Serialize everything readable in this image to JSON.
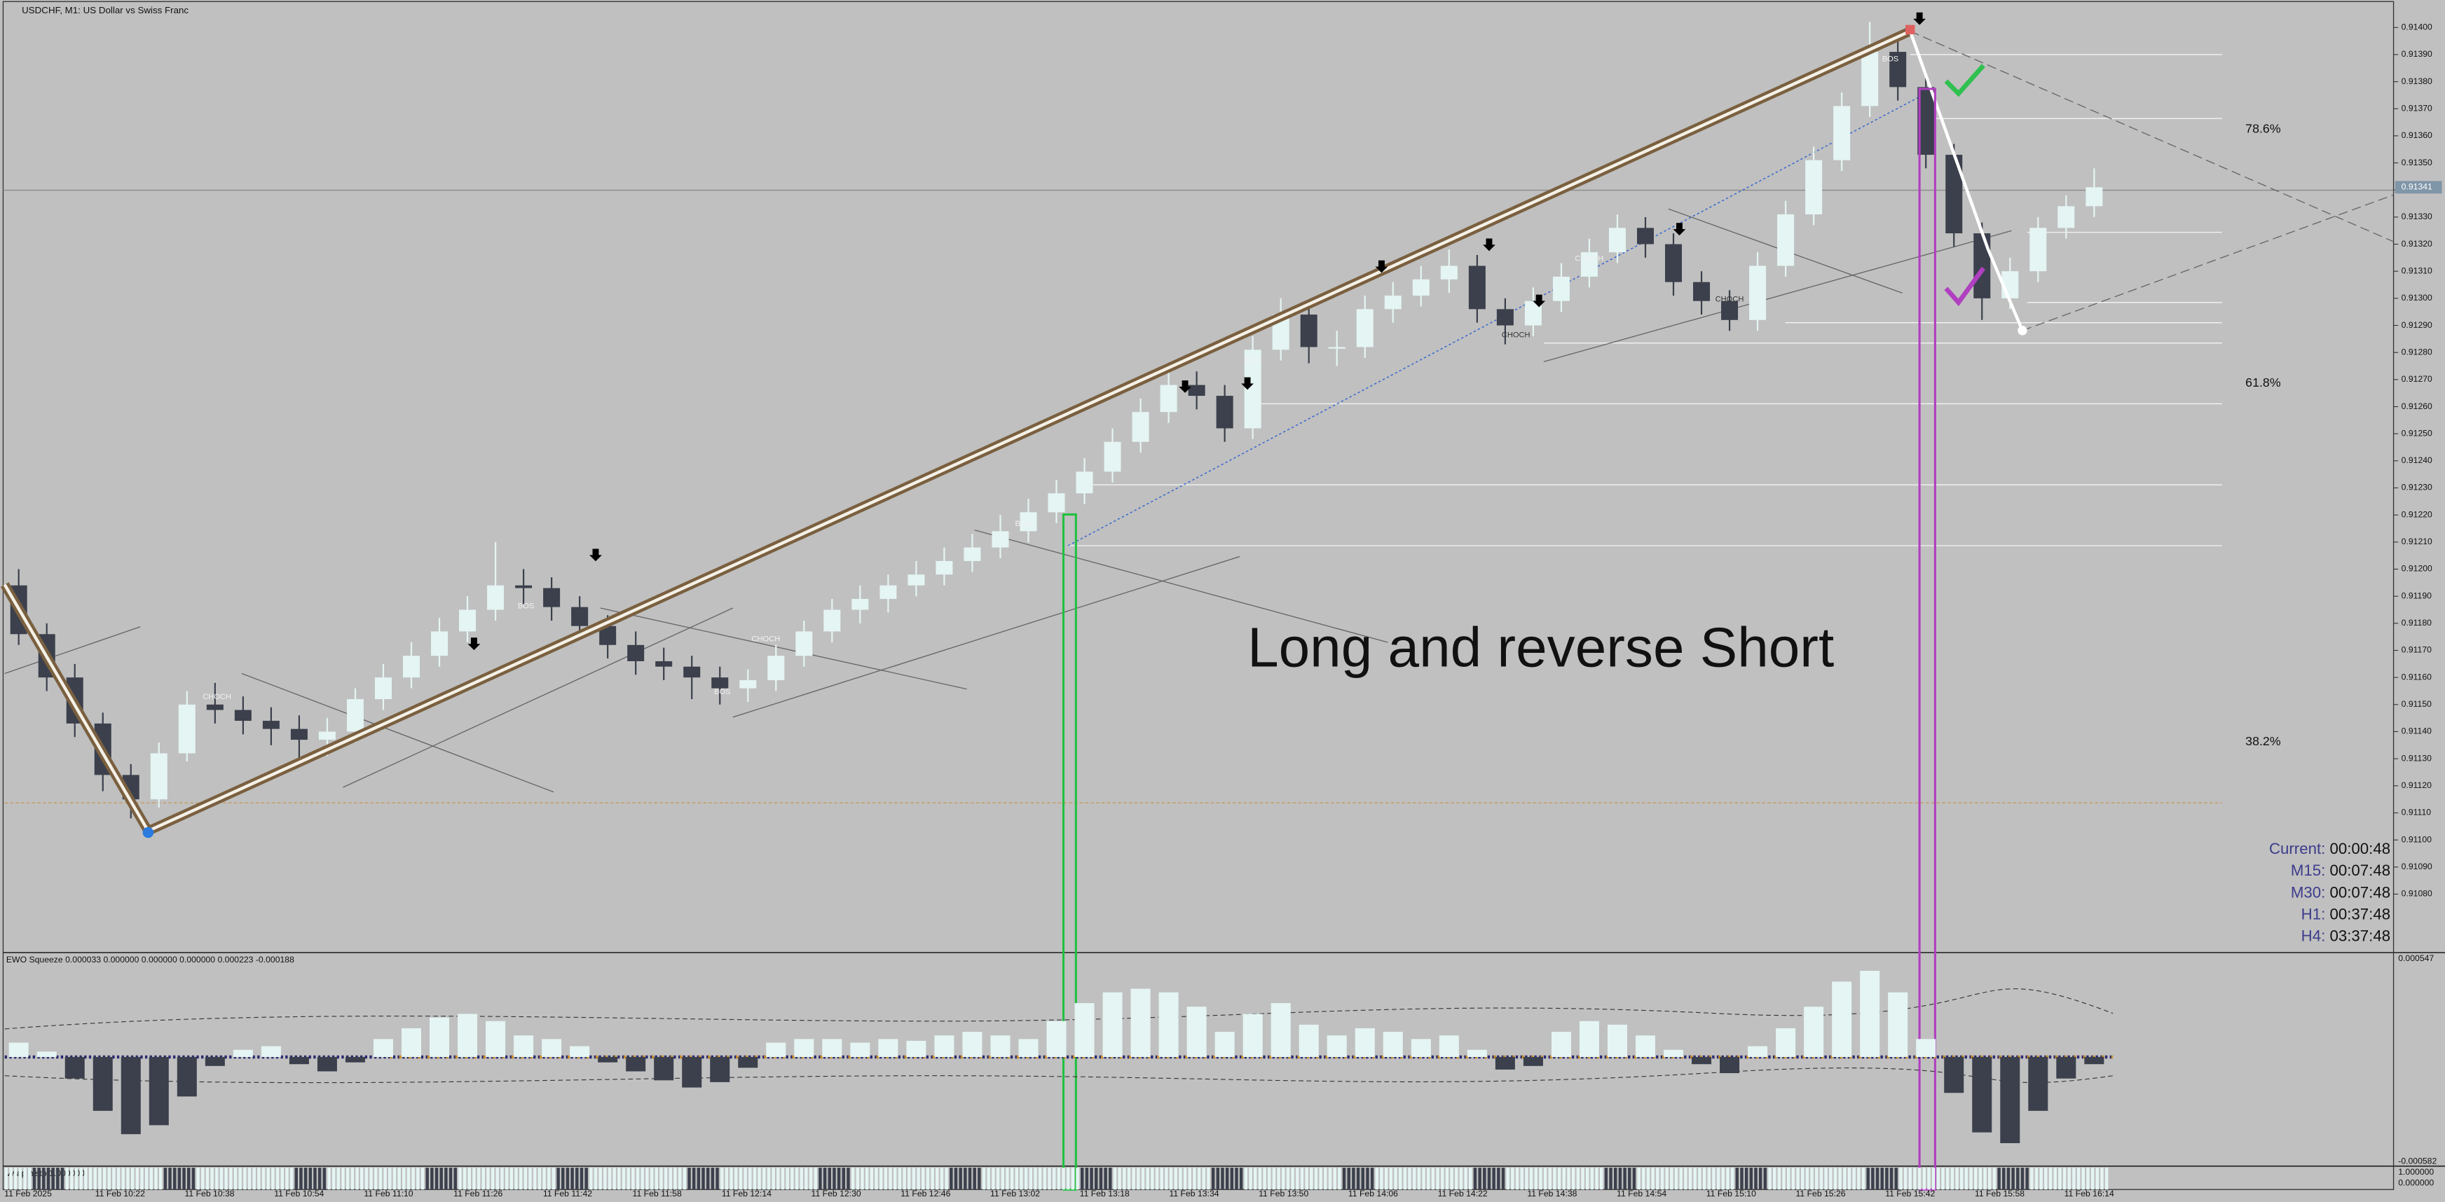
{
  "chart_data": [
    {
      "type": "candlestick",
      "title": "USDCHF, M1:  US Dollar vs Swiss Franc",
      "annotations": [
        "Long and reverse Short"
      ],
      "smc_labels": [
        "BOS",
        "BOS",
        "CHOCH",
        "CHOCH",
        "BOS",
        "BOS",
        "CHOCH",
        "CHOCH",
        "CHOCH",
        "BOS"
      ],
      "fib_labels": [
        "78.6%",
        "61.8%",
        "38.2%"
      ],
      "timers": [
        {
          "label": "Current:",
          "value": "00:00:48"
        },
        {
          "label": "M15:",
          "value": "00:07:48"
        },
        {
          "label": "M30:",
          "value": "00:07:48"
        },
        {
          "label": "H1:",
          "value": "00:37:48"
        },
        {
          "label": "H4:",
          "value": "03:37:48"
        }
      ],
      "xticks": [
        "11 Feb 2025",
        "11 Feb 10:22",
        "11 Feb 10:38",
        "11 Feb 10:54",
        "11 Feb 11:10",
        "11 Feb 11:26",
        "11 Feb 11:42",
        "11 Feb 11:58",
        "11 Feb 12:14",
        "11 Feb 12:30",
        "11 Feb 12:46",
        "11 Feb 13:02",
        "11 Feb 13:18",
        "11 Feb 13:34",
        "11 Feb 13:50",
        "11 Feb 14:06",
        "11 Feb 14:22",
        "11 Feb 14:38",
        "11 Feb 14:54",
        "11 Feb 15:10",
        "11 Feb 15:26",
        "11 Feb 15:42",
        "11 Feb 15:58",
        "11 Feb 16:14"
      ],
      "ylim": [
        0.91059,
        0.91409
      ],
      "yticks": [
        {
          "value": 0.9108,
          "label": "0.91080"
        },
        {
          "value": 0.9109,
          "label": "0.91090"
        },
        {
          "value": 0.911,
          "label": "0.91100"
        },
        {
          "value": 0.9111,
          "label": "0.91110"
        },
        {
          "value": 0.9112,
          "label": "0.91120"
        },
        {
          "value": 0.9113,
          "label": "0.91130"
        },
        {
          "value": 0.9114,
          "label": "0.91140"
        },
        {
          "value": 0.9115,
          "label": "0.91150"
        },
        {
          "value": 0.9116,
          "label": "0.91160"
        },
        {
          "value": 0.9117,
          "label": "0.91170"
        },
        {
          "value": 0.9118,
          "label": "0.91180"
        },
        {
          "value": 0.9119,
          "label": "0.91190"
        },
        {
          "value": 0.912,
          "label": "0.91200"
        },
        {
          "value": 0.9121,
          "label": "0.91210"
        },
        {
          "value": 0.9122,
          "label": "0.91220"
        },
        {
          "value": 0.9123,
          "label": "0.91230"
        },
        {
          "value": 0.9124,
          "label": "0.91240"
        },
        {
          "value": 0.9125,
          "label": "0.91250"
        },
        {
          "value": 0.9126,
          "label": "0.91260"
        },
        {
          "value": 0.9127,
          "label": "0.91270"
        },
        {
          "value": 0.9128,
          "label": "0.91280"
        },
        {
          "value": 0.9129,
          "label": "0.91290"
        },
        {
          "value": 0.913,
          "label": "0.91300"
        },
        {
          "value": 0.9131,
          "label": "0.91310"
        },
        {
          "value": 0.9132,
          "label": "0.91320"
        },
        {
          "value": 0.9133,
          "label": "0.91330"
        },
        {
          "value": 0.9134,
          "label": "0.91340"
        },
        {
          "value": 0.9135,
          "label": "0.91350"
        },
        {
          "value": 0.9136,
          "label": "0.91360"
        },
        {
          "value": 0.9137,
          "label": "0.91370"
        },
        {
          "value": 0.9138,
          "label": "0.91380"
        },
        {
          "value": 0.9139,
          "label": "0.91390"
        },
        {
          "value": 0.914,
          "label": "0.91400"
        }
      ],
      "last_price": {
        "value": 0.91341,
        "label": "0.91341"
      },
      "up_color": "#e4f5f3",
      "down_color": "#3b404c",
      "open": [
        0.91194,
        0.91176,
        0.9116,
        0.91143,
        0.91124,
        0.91115,
        0.91132,
        0.9115,
        0.91148,
        0.91144,
        0.91141,
        0.91137,
        0.9114,
        0.91152,
        0.9116,
        0.91168,
        0.91177,
        0.91185,
        0.91194,
        0.91193,
        0.91186,
        0.91179,
        0.91172,
        0.91166,
        0.91164,
        0.9116,
        0.91156,
        0.91159,
        0.91168,
        0.91177,
        0.91185,
        0.91189,
        0.91194,
        0.91198,
        0.91203,
        0.91208,
        0.91214,
        0.91221,
        0.91228,
        0.91236,
        0.91247,
        0.91258,
        0.91268,
        0.91264,
        0.91252,
        0.91281,
        0.91294,
        0.91282,
        0.91282,
        0.91296,
        0.91301,
        0.91307,
        0.91312,
        0.91296,
        0.9129,
        0.91299,
        0.91308,
        0.91317,
        0.91326,
        0.9132,
        0.91306,
        0.91299,
        0.91292,
        0.91312,
        0.91331,
        0.91351,
        0.91371,
        0.91391,
        0.91378,
        0.91353,
        0.91324,
        0.913,
        0.9131,
        0.91326,
        0.91334
      ],
      "high": [
        0.912,
        0.9118,
        0.91165,
        0.91147,
        0.91128,
        0.91136,
        0.91155,
        0.91158,
        0.91153,
        0.91149,
        0.91146,
        0.91145,
        0.91156,
        0.91165,
        0.91173,
        0.91182,
        0.9119,
        0.9121,
        0.912,
        0.91197,
        0.9119,
        0.91183,
        0.91177,
        0.91171,
        0.91168,
        0.91164,
        0.91163,
        0.91172,
        0.91181,
        0.91189,
        0.91194,
        0.91198,
        0.91203,
        0.91208,
        0.91213,
        0.9122,
        0.91226,
        0.91233,
        0.91241,
        0.91252,
        0.91263,
        0.91274,
        0.91273,
        0.91268,
        0.91286,
        0.913,
        0.91298,
        0.91288,
        0.91301,
        0.91306,
        0.91312,
        0.91318,
        0.91316,
        0.913,
        0.91304,
        0.91313,
        0.91322,
        0.91331,
        0.9133,
        0.91324,
        0.9131,
        0.91303,
        0.91317,
        0.91336,
        0.91356,
        0.91376,
        0.91402,
        0.91396,
        0.91382,
        0.91357,
        0.91328,
        0.91315,
        0.9133,
        0.91338,
        0.91348
      ],
      "low": [
        0.91172,
        0.91155,
        0.91138,
        0.91118,
        0.91108,
        0.91112,
        0.91129,
        0.91143,
        0.91139,
        0.91135,
        0.9113,
        0.91131,
        0.91136,
        0.91148,
        0.91156,
        0.91164,
        0.91173,
        0.91181,
        0.91187,
        0.91181,
        0.91174,
        0.91167,
        0.91161,
        0.91159,
        0.91152,
        0.9115,
        0.91151,
        0.91155,
        0.91164,
        0.91173,
        0.9118,
        0.91184,
        0.9119,
        0.91194,
        0.91199,
        0.91204,
        0.9121,
        0.91217,
        0.91224,
        0.91232,
        0.91243,
        0.91254,
        0.91259,
        0.91247,
        0.91248,
        0.91277,
        0.91276,
        0.91275,
        0.91278,
        0.91291,
        0.91297,
        0.91302,
        0.91291,
        0.91283,
        0.91286,
        0.91295,
        0.91304,
        0.91313,
        0.91315,
        0.91301,
        0.91294,
        0.91288,
        0.91288,
        0.91308,
        0.91327,
        0.91347,
        0.91367,
        0.91373,
        0.91348,
        0.91319,
        0.91292,
        0.91296,
        0.91306,
        0.91322,
        0.9133
      ],
      "close": [
        0.91176,
        0.9116,
        0.91143,
        0.91124,
        0.91115,
        0.91132,
        0.9115,
        0.91148,
        0.91144,
        0.91141,
        0.91137,
        0.9114,
        0.91152,
        0.9116,
        0.91168,
        0.91177,
        0.91185,
        0.91194,
        0.91193,
        0.91186,
        0.91179,
        0.91172,
        0.91166,
        0.91164,
        0.9116,
        0.91156,
        0.91159,
        0.91168,
        0.91177,
        0.91185,
        0.91189,
        0.91194,
        0.91198,
        0.91203,
        0.91208,
        0.91214,
        0.91221,
        0.91228,
        0.91236,
        0.91247,
        0.91258,
        0.91268,
        0.91264,
        0.91252,
        0.91281,
        0.91294,
        0.91282,
        0.91282,
        0.91296,
        0.91301,
        0.91307,
        0.91312,
        0.91296,
        0.9129,
        0.91299,
        0.91308,
        0.91317,
        0.91326,
        0.9132,
        0.91306,
        0.91299,
        0.91292,
        0.91312,
        0.91331,
        0.91351,
        0.91371,
        0.91391,
        0.91378,
        0.91353,
        0.91324,
        0.913,
        0.9131,
        0.91326,
        0.91334,
        0.91341
      ]
    },
    {
      "type": "bar",
      "title": "EWO Squeeze 0.000033 0.000000 0.000000 0.000000 0.000223 -0.000188",
      "ylim": [
        -0.000582,
        0.000547
      ],
      "yticks": [
        -0.000582,
        0.000547
      ],
      "up_color": "#e4f5f3",
      "down_color": "#3b404c",
      "values": [
        8e-05,
        3e-05,
        -0.00012,
        -0.0003,
        -0.00043,
        -0.00038,
        -0.00022,
        -5e-05,
        4e-05,
        6e-05,
        -4e-05,
        -8e-05,
        -3e-05,
        0.0001,
        0.00016,
        0.00022,
        0.00024,
        0.0002,
        0.00012,
        0.0001,
        6e-05,
        -3e-05,
        -8e-05,
        -0.00013,
        -0.00017,
        -0.00014,
        -6e-05,
        8e-05,
        0.0001,
        0.0001,
        8e-05,
        0.0001,
        9e-05,
        0.00012,
        0.00014,
        0.00012,
        0.0001,
        0.0002,
        0.0003,
        0.00036,
        0.00038,
        0.00036,
        0.00028,
        0.00014,
        0.00024,
        0.0003,
        0.00018,
        0.00012,
        0.00016,
        0.00014,
        0.0001,
        0.00012,
        4e-05,
        -7e-05,
        -5e-05,
        0.00014,
        0.0002,
        0.00018,
        0.00012,
        4e-05,
        -4e-05,
        -9e-05,
        6e-05,
        0.00016,
        0.00028,
        0.00042,
        0.00048,
        0.00036,
        0.0001,
        -0.0002,
        -0.00042,
        -0.00048,
        -0.0003,
        -0.00012,
        -4e-05
      ]
    },
    {
      "type": "strip",
      "title": "vwap histo 1.000000",
      "yticks": [
        "1.000000",
        "0.000000"
      ]
    }
  ]
}
